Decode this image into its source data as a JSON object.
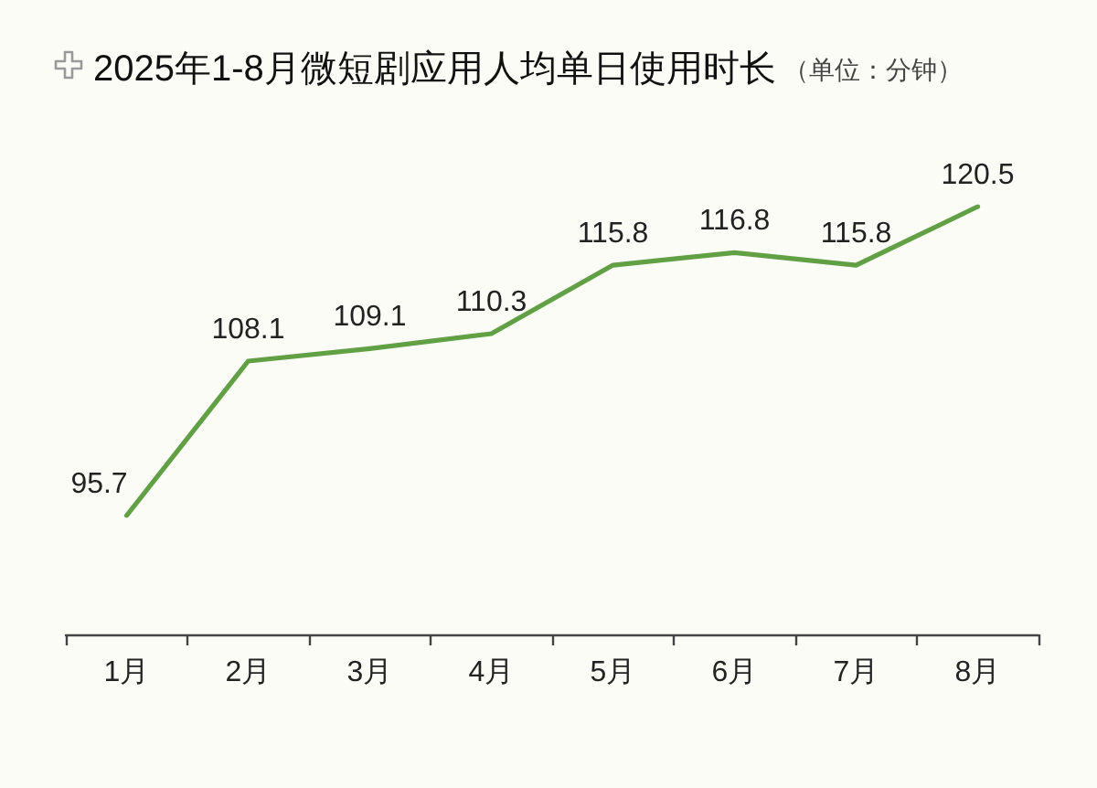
{
  "chart_data": {
    "type": "line",
    "title": "2025年1-8月微短剧应用人均单日使用时长",
    "subtitle": "（单位：分钟）",
    "categories": [
      "1月",
      "2月",
      "3月",
      "4月",
      "5月",
      "6月",
      "7月",
      "8月"
    ],
    "series": [
      {
        "color": "#62a046",
        "values": [
          95.7,
          108.1,
          109.1,
          110.3,
          115.8,
          116.8,
          115.8,
          120.5
        ]
      }
    ],
    "data_labels": true
  }
}
